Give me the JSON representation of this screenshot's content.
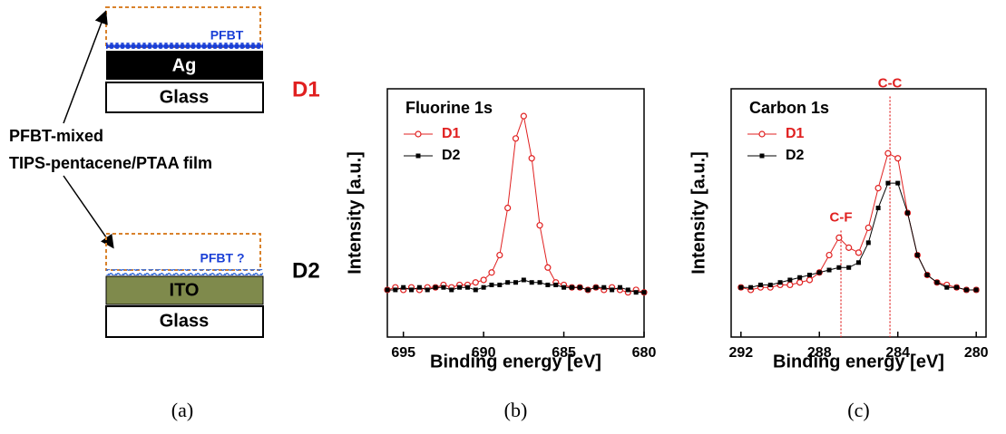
{
  "schematic": {
    "top_layer": "PFBT",
    "top_metal": "Ag",
    "top_substrate": "Glass",
    "top_device": "D1",
    "film_line1": "PFBT-mixed",
    "film_line2": "TIPS-pentacene/PTAA film",
    "bottom_layer": "PFBT ?",
    "bottom_electrode": "ITO",
    "bottom_substrate": "Glass",
    "bottom_device": "D2",
    "caption": "(a)"
  },
  "chart_data": [
    {
      "type": "line",
      "title": "Fluorine 1s",
      "caption": "(b)",
      "x_label": "Binding energy [eV]",
      "y_label": "Intensity [a.u.]",
      "x": [
        696,
        695.5,
        695,
        694.5,
        694,
        693.5,
        693,
        692.5,
        692,
        691.5,
        691,
        690.5,
        690,
        689.5,
        689,
        688.5,
        688,
        687.5,
        687,
        686.5,
        686,
        685.5,
        685,
        684.5,
        684,
        683.5,
        683,
        682.5,
        682,
        681.5,
        681,
        680.5,
        680
      ],
      "series": [
        {
          "name": "D1",
          "color": "#e02020",
          "marker": "circle",
          "values": [
            19,
            20,
            19,
            20,
            19,
            20,
            20,
            21,
            20,
            21,
            21,
            22,
            23,
            26,
            33,
            52,
            80,
            89,
            72,
            45,
            28,
            22,
            21,
            20,
            20,
            19,
            20,
            19,
            20,
            19,
            18,
            19,
            18
          ]
        },
        {
          "name": "D2",
          "color": "#000000",
          "marker": "square",
          "values": [
            19,
            19,
            20,
            19,
            20,
            19,
            20,
            20,
            19,
            20,
            20,
            19,
            20,
            21,
            21,
            22,
            22,
            23,
            22,
            22,
            21,
            21,
            20,
            20,
            20,
            19,
            20,
            20,
            19,
            20,
            19,
            18,
            18
          ]
        }
      ],
      "xlim": [
        696,
        680
      ],
      "xticks": [
        695,
        690,
        685,
        680
      ],
      "ylim": [
        0,
        100
      ],
      "legend": "upper left"
    },
    {
      "type": "line",
      "title": "Carbon 1s",
      "caption": "(c)",
      "x_label": "Binding energy [eV]",
      "y_label": "Intensity [a.u.]",
      "x": [
        292,
        291.5,
        291,
        290.5,
        290,
        289.5,
        289,
        288.5,
        288,
        287.5,
        287,
        286.5,
        286,
        285.5,
        285,
        284.5,
        284,
        283.5,
        283,
        282.5,
        282,
        281.5,
        281,
        280.5,
        280
      ],
      "series": [
        {
          "name": "D1",
          "color": "#e02020",
          "marker": "circle",
          "values": [
            20,
            19,
            20,
            20,
            21,
            21,
            22,
            23,
            26,
            33,
            40,
            36,
            34,
            44,
            60,
            74,
            72,
            50,
            33,
            25,
            22,
            21,
            20,
            19,
            19
          ]
        },
        {
          "name": "D2",
          "color": "#000000",
          "marker": "square",
          "values": [
            20,
            20,
            21,
            21,
            22,
            23,
            24,
            25,
            26,
            27,
            28,
            28,
            30,
            38,
            52,
            62,
            62,
            50,
            33,
            25,
            22,
            20,
            20,
            19,
            19
          ]
        }
      ],
      "annotations": [
        {
          "text": "C-F",
          "x": 286.9,
          "y": 48,
          "color": "#e02020"
        },
        {
          "text": "C-C",
          "x": 284.4,
          "y": 102,
          "color": "#e02020"
        }
      ],
      "xlim": [
        292.5,
        279.5
      ],
      "xticks": [
        292,
        288,
        284,
        280
      ],
      "ylim": [
        0,
        100
      ],
      "legend": "upper left"
    }
  ]
}
